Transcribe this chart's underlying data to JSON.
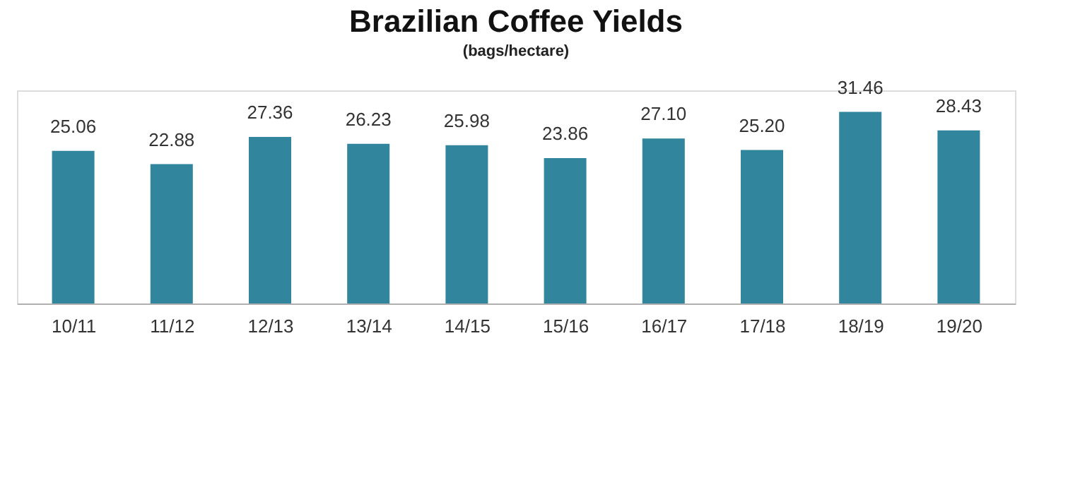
{
  "chart_data": {
    "type": "bar",
    "title": "Brazilian Coffee Yields",
    "subtitle": "(bags/hectare)",
    "categories": [
      "10/11",
      "11/12",
      "12/13",
      "13/14",
      "14/15",
      "15/16",
      "16/17",
      "17/18",
      "18/19",
      "19/20"
    ],
    "values": [
      25.06,
      22.88,
      27.36,
      26.23,
      25.98,
      23.86,
      27.1,
      25.2,
      31.46,
      28.43
    ],
    "value_labels": [
      "25.06",
      "22.88",
      "27.36",
      "26.23",
      "25.98",
      "23.86",
      "27.10",
      "25.20",
      "31.46",
      "28.43"
    ],
    "color": "#31859c",
    "tick_labels": "x",
    "grid": false
  }
}
